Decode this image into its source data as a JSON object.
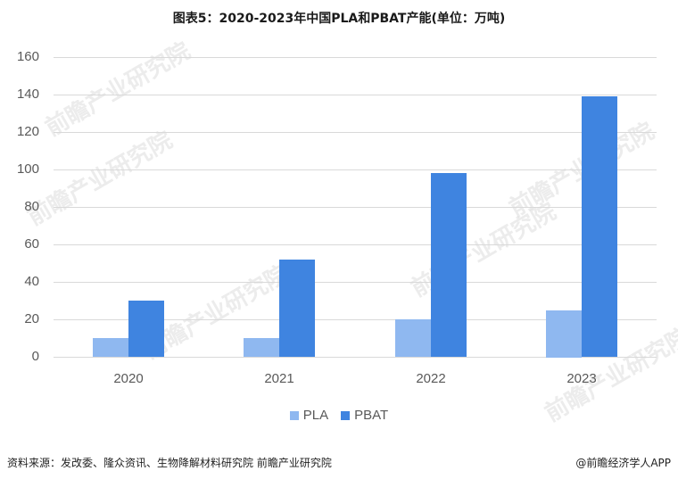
{
  "title": "图表5：2020-2023年中国PLA和PBAT产能(单位：万吨)",
  "footer": {
    "source": "资料来源：发改委、隆众资讯、生物降解材料研究院 前瞻产业研究院",
    "brand": "@前瞻经济学人APP"
  },
  "watermark": "前瞻产业研究院",
  "colors": {
    "PLA": "#8fb8f0",
    "PBAT": "#3f84e0",
    "grid": "#d9d9d9"
  },
  "legend": [
    {
      "label": "PLA",
      "color": "#8fb8f0"
    },
    {
      "label": "PBAT",
      "color": "#3f84e0"
    }
  ],
  "y_ticks": [
    "0",
    "20",
    "40",
    "60",
    "80",
    "100",
    "120",
    "140",
    "160"
  ],
  "chart_data": {
    "type": "bar",
    "title": "图表5：2020-2023年中国PLA和PBAT产能(单位：万吨)",
    "xlabel": "",
    "ylabel": "",
    "categories": [
      "2020",
      "2021",
      "2022",
      "2023"
    ],
    "series": [
      {
        "name": "PLA",
        "values": [
          10,
          10,
          20,
          25
        ]
      },
      {
        "name": "PBAT",
        "values": [
          30,
          52,
          98,
          139
        ]
      }
    ],
    "ylim": [
      0,
      160
    ],
    "yticks": [
      0,
      20,
      40,
      60,
      80,
      100,
      120,
      140,
      160
    ],
    "grid": true,
    "legend_position": "bottom"
  }
}
